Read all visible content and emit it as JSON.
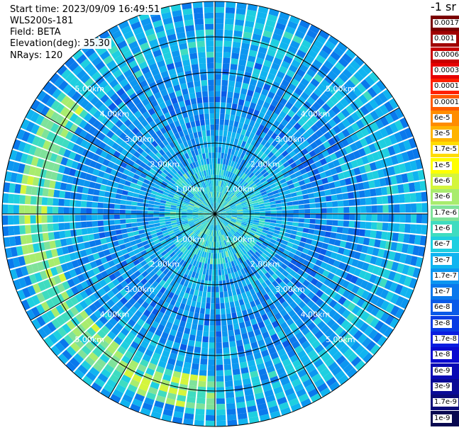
{
  "info": {
    "start_time": "Start time: 2023/09/09 16:49:51",
    "instrument": "WLS200s-181",
    "field": "Field: BETA",
    "elevation": "Elevation(deg): 35.30",
    "nrays": "NRays: 120"
  },
  "legend": {
    "title": "-1 sr",
    "entries": [
      {
        "label": "0.0017",
        "color": "#7a0000"
      },
      {
        "label": "0.001",
        "color": "#a00000"
      },
      {
        "label": "0.0006",
        "color": "#c80000"
      },
      {
        "label": "0.0003",
        "color": "#e60000"
      },
      {
        "label": "0.00017",
        "color": "#ff2000"
      },
      {
        "label": "0.0001",
        "color": "#ff5a00"
      },
      {
        "label": "6e-5",
        "color": "#ff8c00"
      },
      {
        "label": "3e-5",
        "color": "#ffb400"
      },
      {
        "label": "1.7e-5",
        "color": "#ffdc00"
      },
      {
        "label": "1e-5",
        "color": "#ffff00"
      },
      {
        "label": "6e-6",
        "color": "#d4f53c"
      },
      {
        "label": "3e-6",
        "color": "#a8ec6e"
      },
      {
        "label": "1.7e-6",
        "color": "#7fe29a"
      },
      {
        "label": "1e-6",
        "color": "#3fdcc0"
      },
      {
        "label": "6e-7",
        "color": "#1ecfe0"
      },
      {
        "label": "3e-7",
        "color": "#10b4f0"
      },
      {
        "label": "1.7e-7",
        "color": "#0c96f0"
      },
      {
        "label": "1e-7",
        "color": "#0a78ec"
      },
      {
        "label": "6e-8",
        "color": "#0a5ae8"
      },
      {
        "label": "3e-8",
        "color": "#0a3ce4"
      },
      {
        "label": "1.7e-8",
        "color": "#0a1ee0"
      },
      {
        "label": "1e-8",
        "color": "#0a0ad0"
      },
      {
        "label": "6e-9",
        "color": "#0a0ab4"
      },
      {
        "label": "3e-9",
        "color": "#0a0a96"
      },
      {
        "label": "1.7e-9",
        "color": "#0a0a78"
      },
      {
        "label": "1e-9",
        "color": "#080850"
      }
    ]
  },
  "chart_data": {
    "type": "heatmap",
    "projection": "polar",
    "field": "BETA",
    "unit": "sr-1",
    "n_rays": 120,
    "elevation_deg": 35.3,
    "range_rings_km": [
      1,
      2,
      3,
      4,
      5
    ],
    "range_ring_labels": [
      "1.00km",
      "2.00km",
      "3.00km",
      "4.00km",
      "5.00km"
    ],
    "max_range_km": 6.0,
    "radial_shells": [
      {
        "r_km": [
          0.0,
          0.8
        ],
        "value": 6e-07
      },
      {
        "r_km": [
          0.8,
          1.5
        ],
        "value": 5e-07
      },
      {
        "r_km": [
          1.5,
          2.5
        ],
        "value": 2.2e-07
      },
      {
        "r_km": [
          2.5,
          3.5
        ],
        "value": 1.5e-07
      },
      {
        "r_km": [
          3.5,
          4.5
        ],
        "value": 1.9e-07
      },
      {
        "r_km": [
          4.5,
          5.5
        ],
        "value": 3e-07
      },
      {
        "r_km": [
          5.5,
          6.0
        ],
        "value": 2.3e-07
      }
    ],
    "enhanced_ring": {
      "r_km": [
        4.6,
        5.6
      ],
      "value": 1.7e-06,
      "azimuth_deg": [
        180,
        310
      ]
    },
    "color_scale": "log",
    "range": [
      1e-09,
      0.0017
    ]
  }
}
